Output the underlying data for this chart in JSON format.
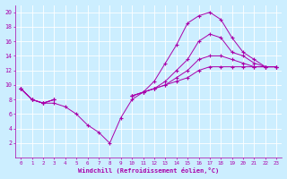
{
  "xlabel": "Windchill (Refroidissement éolien,°C)",
  "bg_color": "#cceeff",
  "line_color": "#aa00aa",
  "xlim": [
    -0.5,
    23.5
  ],
  "ylim": [
    0,
    21
  ],
  "xticks": [
    0,
    1,
    2,
    3,
    4,
    5,
    6,
    7,
    8,
    9,
    10,
    11,
    12,
    13,
    14,
    15,
    16,
    17,
    18,
    19,
    20,
    21,
    22,
    23
  ],
  "yticks": [
    2,
    4,
    6,
    8,
    10,
    12,
    14,
    16,
    18,
    20
  ],
  "lines": [
    {
      "segments": [
        {
          "x": [
            0,
            1,
            2,
            3,
            4,
            5,
            6,
            7,
            8,
            9,
            10,
            11,
            12,
            13,
            14,
            15,
            16,
            17,
            18,
            19,
            20,
            21,
            22,
            23
          ],
          "y": [
            9.5,
            8,
            7.5,
            7.5,
            7,
            6,
            4.5,
            3.5,
            2,
            5.5,
            8,
            9,
            10.5,
            13,
            15.5,
            18.5,
            19.5,
            20,
            19,
            16.5,
            14.5,
            13.5,
            12.5,
            12.5
          ]
        }
      ]
    },
    {
      "segments": [
        {
          "x": [
            0,
            1,
            2,
            3
          ],
          "y": [
            9.5,
            8,
            7.5,
            8
          ]
        },
        {
          "x": [
            10,
            11,
            12,
            13,
            14,
            15,
            16,
            17,
            18,
            19,
            20,
            21,
            22,
            23
          ],
          "y": [
            8.5,
            9,
            9.5,
            10.5,
            12,
            13.5,
            16,
            17,
            16.5,
            14.5,
            14,
            13,
            12.5,
            12.5
          ]
        }
      ]
    },
    {
      "segments": [
        {
          "x": [
            0,
            1,
            2,
            3
          ],
          "y": [
            9.5,
            8,
            7.5,
            8
          ]
        },
        {
          "x": [
            10,
            11,
            12,
            13,
            14,
            15,
            16,
            17,
            18,
            19,
            20,
            21,
            22,
            23
          ],
          "y": [
            8.5,
            9,
            9.5,
            10,
            11,
            12,
            13.5,
            14,
            14,
            13.5,
            13,
            12.5,
            12.5,
            12.5
          ]
        }
      ]
    },
    {
      "segments": [
        {
          "x": [
            0,
            1,
            2,
            3
          ],
          "y": [
            9.5,
            8,
            7.5,
            8
          ]
        },
        {
          "x": [
            10,
            11,
            12,
            13,
            14,
            15,
            16,
            17,
            18,
            19,
            20,
            21,
            22,
            23
          ],
          "y": [
            8.5,
            9,
            9.5,
            10,
            10.5,
            11,
            12,
            12.5,
            12.5,
            12.5,
            12.5,
            12.5,
            12.5,
            12.5
          ]
        }
      ]
    }
  ]
}
